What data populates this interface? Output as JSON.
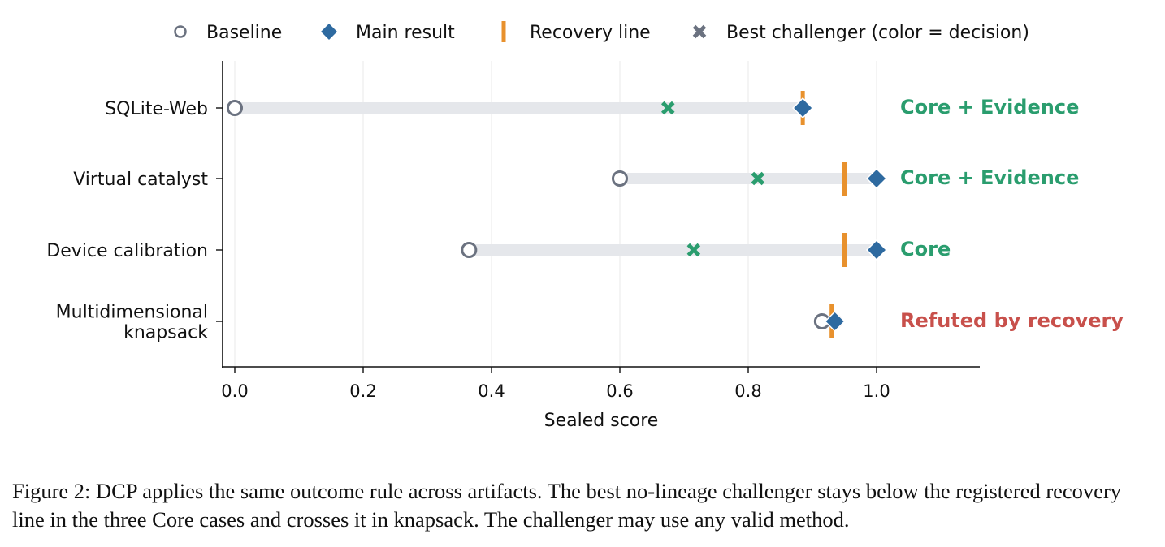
{
  "chart_data": {
    "type": "dumbbell",
    "xlabel": "Sealed score",
    "xlim": [
      -0.02,
      1.16
    ],
    "xticks": [
      0.0,
      0.2,
      0.4,
      0.6,
      0.8,
      1.0
    ],
    "xtick_labels": [
      "0.0",
      "0.2",
      "0.4",
      "0.6",
      "0.8",
      "1.0"
    ],
    "grid": "vertical",
    "legend_position": "top",
    "legend": [
      {
        "key": "baseline",
        "label": "Baseline"
      },
      {
        "key": "main",
        "label": "Main result"
      },
      {
        "key": "recovery",
        "label": "Recovery line"
      },
      {
        "key": "challenger",
        "label": "Best challenger (color = decision)"
      }
    ],
    "rows": [
      {
        "label": [
          "SQLite-Web"
        ],
        "baseline": 0.0,
        "main": 0.885,
        "recovery": 0.885,
        "challenger": 0.675,
        "decision": "Core + Evidence",
        "decision_color": "#2a9d6e"
      },
      {
        "label": [
          "Virtual catalyst"
        ],
        "baseline": 0.6,
        "main": 1.0,
        "recovery": 0.95,
        "challenger": 0.815,
        "decision": "Core + Evidence",
        "decision_color": "#2a9d6e"
      },
      {
        "label": [
          "Device calibration"
        ],
        "baseline": 0.365,
        "main": 1.0,
        "recovery": 0.95,
        "challenger": 0.715,
        "decision": "Core",
        "decision_color": "#2a9d6e"
      },
      {
        "label": [
          "Multidimensional",
          "knapsack"
        ],
        "baseline": 0.915,
        "main": 0.935,
        "recovery": 0.93,
        "challenger": 0.935,
        "decision": "Refuted by recovery",
        "decision_color": "#c8504b"
      }
    ],
    "colors": {
      "baseline": "#6b7280",
      "main": "#2e6aa0",
      "recovery": "#e8912d",
      "challenger_legend": "#6b7280",
      "range_bar": "#e5e7eb"
    }
  },
  "caption": "Figure 2: DCP applies the same outcome rule across artifacts. The best no-lineage challenger stays below the registered recovery line in the three Core cases and crosses it in knapsack. The challenger may use any valid method."
}
